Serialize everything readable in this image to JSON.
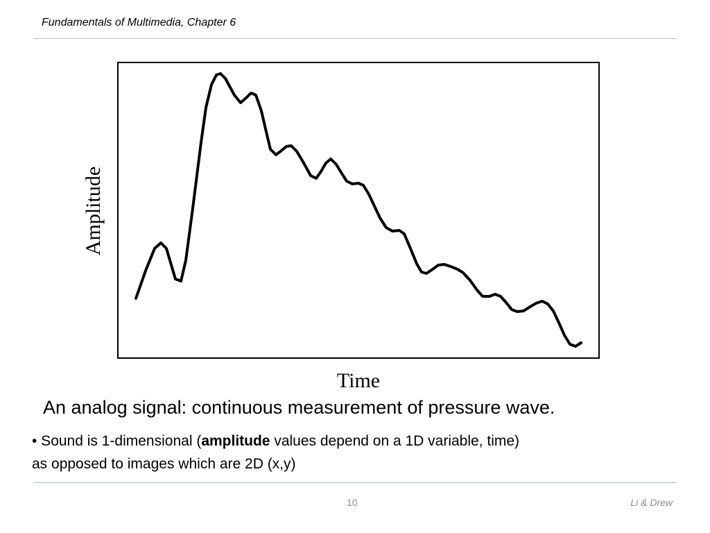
{
  "header": {
    "title": "Fundamentals of Multimedia, Chapter 6"
  },
  "figure": {
    "y_label": "Amplitude",
    "x_label": "Time"
  },
  "caption": "An analog signal: continuous measurement of pressure wave.",
  "bullet": {
    "before": "• Sound is 1-dimensional (",
    "bold": "amplitude",
    "after": " values depend on a 1D variable, time)",
    "line2": "as opposed to images which are 2D (x,y)"
  },
  "footer": {
    "page": "10",
    "authors": "Li & Drew"
  }
}
